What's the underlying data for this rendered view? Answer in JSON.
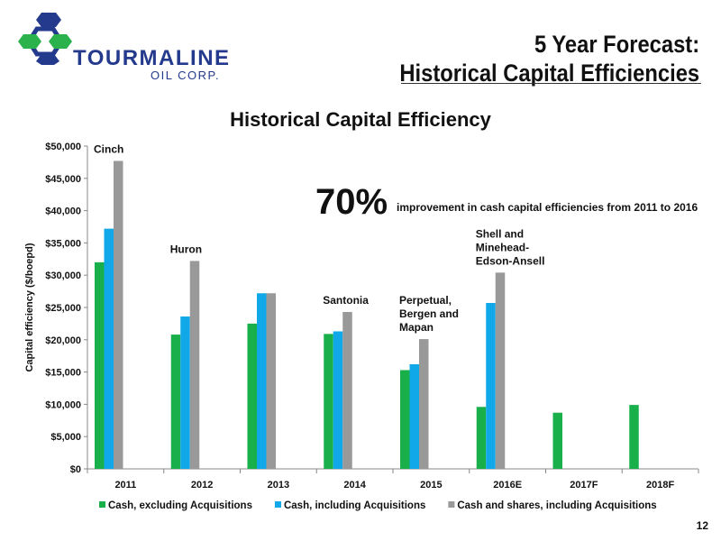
{
  "header": {
    "title_line1": "5 Year Forecast:",
    "title_line2": "Historical Capital Efficiencies"
  },
  "logo": {
    "name": "TOURMALINE",
    "sub": "OIL CORP.",
    "colors": {
      "primary": "#243a8c",
      "accent": "#2bb24c"
    }
  },
  "page_number": "12",
  "callout": {
    "percent": "70%",
    "text": "improvement in cash capital efficiencies from 2011 to 2016"
  },
  "chart_data": {
    "type": "bar",
    "title": "Historical Capital Efficiency",
    "ylabel": "Capital efficiency ($/boepd)",
    "xlabel": "",
    "ylim": [
      0,
      50000
    ],
    "yticks": [
      0,
      5000,
      10000,
      15000,
      20000,
      25000,
      30000,
      35000,
      40000,
      45000,
      50000
    ],
    "ytick_labels": [
      "$0",
      "$5,000",
      "$10,000",
      "$15,000",
      "$20,000",
      "$25,000",
      "$30,000",
      "$35,000",
      "$40,000",
      "$45,000",
      "$50,000"
    ],
    "categories": [
      "2011",
      "2012",
      "2013",
      "2014",
      "2015",
      "2016E",
      "2017F",
      "2018F"
    ],
    "series": [
      {
        "name": "Cash, excluding Acquisitions",
        "color": "#19b04b",
        "values": [
          32000,
          20800,
          22500,
          20900,
          15300,
          9600,
          8700,
          9900
        ]
      },
      {
        "name": "Cash, including Acquisitions",
        "color": "#10a8e8",
        "values": [
          37200,
          23600,
          27200,
          21300,
          16200,
          25700,
          null,
          null
        ]
      },
      {
        "name": "Cash and shares, including Acquisitions",
        "color": "#999999",
        "values": [
          47700,
          32200,
          27200,
          24300,
          20100,
          30400,
          null,
          null
        ]
      }
    ],
    "annotations": [
      {
        "category": "2011",
        "lines": [
          "Cinch"
        ]
      },
      {
        "category": "2012",
        "lines": [
          "Huron"
        ]
      },
      {
        "category": "2014",
        "lines": [
          "Santonia"
        ]
      },
      {
        "category": "2015",
        "lines": [
          "Perpetual,",
          "Bergen and",
          "Mapan"
        ]
      },
      {
        "category": "2016E",
        "lines": [
          "Shell and",
          "Minehead-",
          "Edson-Ansell"
        ]
      }
    ],
    "legend_position": "bottom",
    "grid": false
  }
}
